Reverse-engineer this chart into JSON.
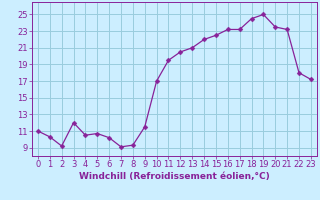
{
  "x": [
    0,
    1,
    2,
    3,
    4,
    5,
    6,
    7,
    8,
    9,
    10,
    11,
    12,
    13,
    14,
    15,
    16,
    17,
    18,
    19,
    20,
    21,
    22,
    23
  ],
  "y": [
    11,
    10.3,
    9.2,
    12,
    10.5,
    10.7,
    10.2,
    9.1,
    9.3,
    11.5,
    17.0,
    19.5,
    20.5,
    21.0,
    22.0,
    22.5,
    23.2,
    23.2,
    24.5,
    25.0,
    23.5,
    23.2,
    18.0,
    17.2
  ],
  "line_color": "#882299",
  "marker_color": "#882299",
  "bg_color": "#cceeff",
  "grid_color": "#99ccdd",
  "xlabel": "Windchill (Refroidissement éolien,°C)",
  "xlabel_color": "#882299",
  "ylabel_ticks": [
    9,
    11,
    13,
    15,
    17,
    19,
    21,
    23,
    25
  ],
  "ylim": [
    8.0,
    26.5
  ],
  "xlim": [
    -0.5,
    23.5
  ],
  "xticks": [
    0,
    1,
    2,
    3,
    4,
    5,
    6,
    7,
    8,
    9,
    10,
    11,
    12,
    13,
    14,
    15,
    16,
    17,
    18,
    19,
    20,
    21,
    22,
    23
  ],
  "tick_color": "#882299",
  "font_size_label": 6.5,
  "font_size_tick": 6.0
}
